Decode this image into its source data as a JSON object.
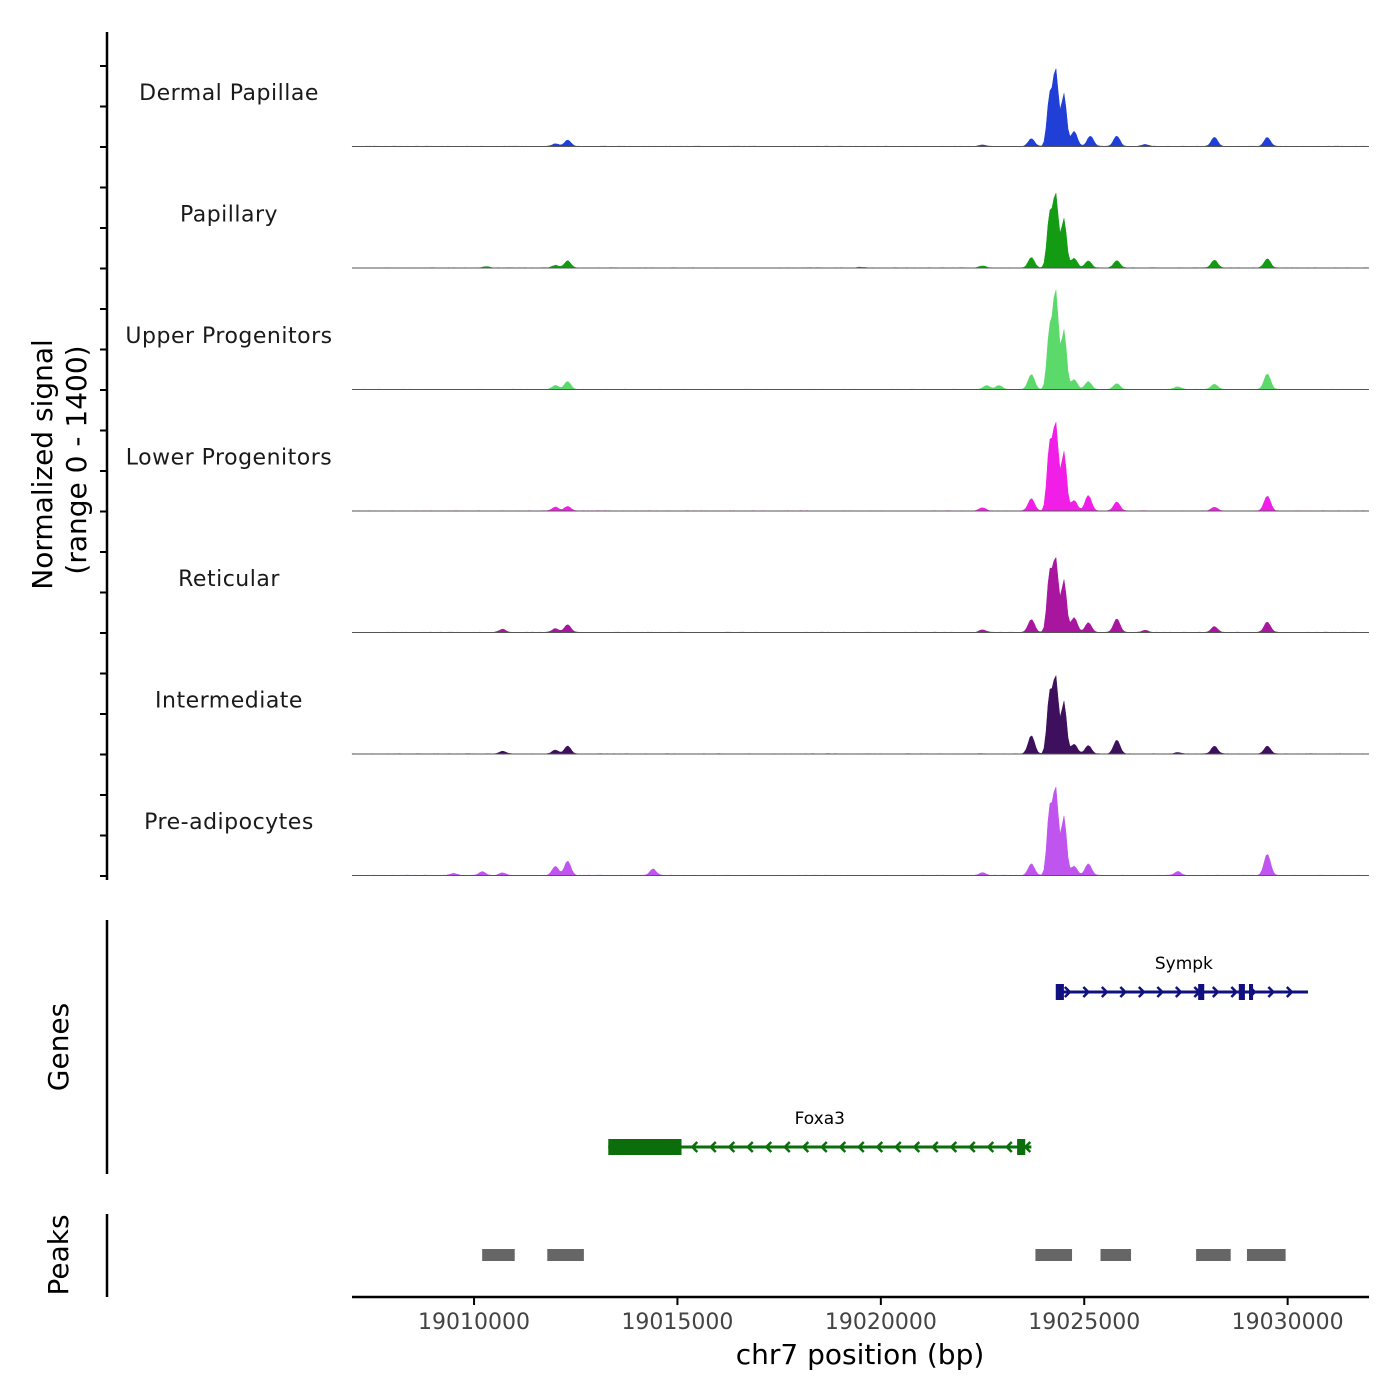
{
  "chart_data": {
    "type": "area",
    "title": "",
    "y_axis_title_line1": "Normalized signal",
    "y_axis_title_line2": "(range 0 - 1400)",
    "xlabel": "chr7 position (bp)",
    "x_range": [
      19007000,
      19032000
    ],
    "x_ticks": [
      19010000,
      19015000,
      19020000,
      19025000,
      19030000
    ],
    "x_tick_labels": [
      "19010000",
      "19015000",
      "19020000",
      "19025000",
      "19030000"
    ],
    "y_range": [
      0,
      1400
    ],
    "tracks": [
      {
        "name": "Dermal Papillae",
        "color": "#1f3fd6",
        "peaks": [
          [
            19012000,
            40
          ],
          [
            19012300,
            100
          ],
          [
            19023700,
            120
          ],
          [
            19024150,
            760
          ],
          [
            19024300,
            1150
          ],
          [
            19024500,
            800
          ],
          [
            19024750,
            230
          ],
          [
            19025150,
            160
          ],
          [
            19025800,
            160
          ],
          [
            19028200,
            140
          ],
          [
            19029500,
            140
          ],
          [
            19026500,
            30
          ],
          [
            19022500,
            20
          ]
        ]
      },
      {
        "name": "Papillary",
        "color": "#139c13",
        "peaks": [
          [
            19012000,
            40
          ],
          [
            19012300,
            110
          ],
          [
            19019500,
            10
          ],
          [
            19023700,
            160
          ],
          [
            19024150,
            800
          ],
          [
            19024300,
            1100
          ],
          [
            19024500,
            750
          ],
          [
            19024750,
            150
          ],
          [
            19025100,
            110
          ],
          [
            19025800,
            110
          ],
          [
            19028200,
            120
          ],
          [
            19029500,
            140
          ],
          [
            19010300,
            20
          ],
          [
            19022500,
            30
          ]
        ]
      },
      {
        "name": "Upper Progenitors",
        "color": "#5bd96a",
        "peaks": [
          [
            19012000,
            60
          ],
          [
            19012300,
            120
          ],
          [
            19023700,
            230
          ],
          [
            19024150,
            900
          ],
          [
            19024300,
            1500
          ],
          [
            19024500,
            900
          ],
          [
            19024750,
            150
          ],
          [
            19025100,
            120
          ],
          [
            19025800,
            90
          ],
          [
            19028200,
            80
          ],
          [
            19029500,
            240
          ],
          [
            19022600,
            60
          ],
          [
            19022900,
            60
          ],
          [
            19027300,
            40
          ]
        ]
      },
      {
        "name": "Lower Progenitors",
        "color": "#f01ee6",
        "peaks": [
          [
            19012000,
            60
          ],
          [
            19012300,
            70
          ],
          [
            19023700,
            190
          ],
          [
            19024150,
            1000
          ],
          [
            19024300,
            1300
          ],
          [
            19024500,
            900
          ],
          [
            19024750,
            160
          ],
          [
            19025100,
            240
          ],
          [
            19025800,
            140
          ],
          [
            19028200,
            60
          ],
          [
            19029500,
            230
          ],
          [
            19022500,
            50
          ]
        ]
      },
      {
        "name": "Reticular",
        "color": "#a8159e",
        "peaks": [
          [
            19010700,
            50
          ],
          [
            19012000,
            60
          ],
          [
            19012300,
            120
          ],
          [
            19023700,
            200
          ],
          [
            19024150,
            900
          ],
          [
            19024300,
            1100
          ],
          [
            19024500,
            800
          ],
          [
            19024750,
            230
          ],
          [
            19025100,
            150
          ],
          [
            19025800,
            210
          ],
          [
            19028200,
            90
          ],
          [
            19029500,
            160
          ],
          [
            19022500,
            40
          ],
          [
            19026500,
            30
          ]
        ]
      },
      {
        "name": "Intermediate",
        "color": "#3d0f5c",
        "peaks": [
          [
            19010700,
            40
          ],
          [
            19012000,
            60
          ],
          [
            19012300,
            120
          ],
          [
            19023700,
            280
          ],
          [
            19024150,
            900
          ],
          [
            19024300,
            1150
          ],
          [
            19024500,
            800
          ],
          [
            19024750,
            150
          ],
          [
            19025100,
            130
          ],
          [
            19025800,
            210
          ],
          [
            19028200,
            120
          ],
          [
            19029500,
            120
          ],
          [
            19027300,
            20
          ]
        ]
      },
      {
        "name": "Pre-adipocytes",
        "color": "#bf55ee",
        "peaks": [
          [
            19010200,
            60
          ],
          [
            19010700,
            40
          ],
          [
            19012000,
            140
          ],
          [
            19012300,
            220
          ],
          [
            19014400,
            100
          ],
          [
            19023700,
            180
          ],
          [
            19024150,
            1000
          ],
          [
            19024300,
            1300
          ],
          [
            19024500,
            900
          ],
          [
            19024750,
            140
          ],
          [
            19025100,
            180
          ],
          [
            19027300,
            60
          ],
          [
            19029500,
            330
          ],
          [
            19022500,
            40
          ],
          [
            19009500,
            30
          ]
        ]
      }
    ],
    "genes": [
      {
        "name": "Sympk",
        "color": "#101080",
        "strand": "+",
        "start": 19024400,
        "end": 19030500,
        "exons": [
          [
            19024300,
            19024500
          ],
          [
            19027800,
            19027950
          ],
          [
            19028800,
            19028950
          ],
          [
            19029050,
            19029150
          ]
        ]
      },
      {
        "name": "Foxa3",
        "color": "#0b6e0b",
        "strand": "-",
        "start": 19013300,
        "end": 19023700,
        "exons": [
          [
            19013300,
            19015100
          ],
          [
            19023350,
            19023550
          ]
        ]
      }
    ],
    "genes_label": "Genes",
    "peaks_label": "Peaks",
    "peak_regions": [
      [
        19010200,
        19011000
      ],
      [
        19011800,
        19012700
      ],
      [
        19023800,
        19024700
      ],
      [
        19025400,
        19026150
      ],
      [
        19027750,
        19028600
      ],
      [
        19029000,
        19029950
      ]
    ]
  }
}
